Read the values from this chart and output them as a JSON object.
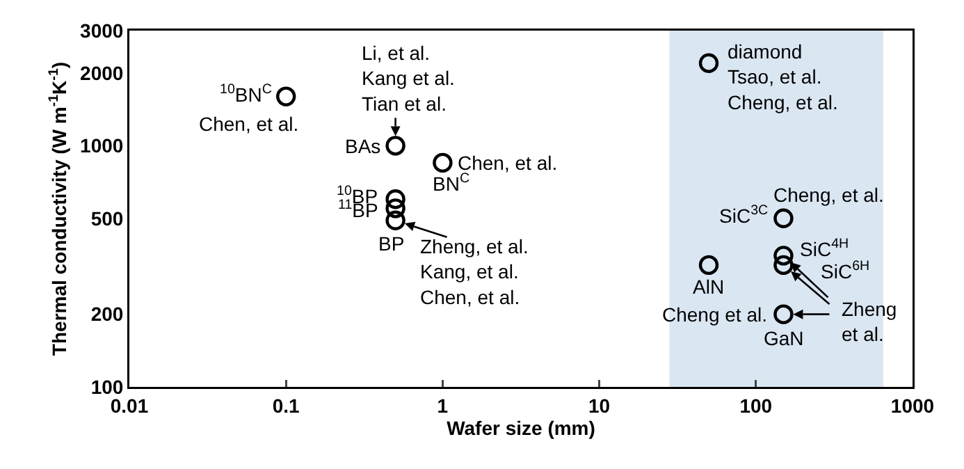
{
  "chart_data": {
    "type": "scatter",
    "xlabel": "Wafer size (mm)",
    "ylabel": "Thermal conductivity (W m$^{-1}$K$^{-1}$)",
    "x": [
      0.1,
      0.5,
      1,
      0.5,
      0.5,
      0.5,
      50,
      150,
      150,
      150,
      50,
      150
    ],
    "values": [
      1600,
      1000,
      850,
      600,
      550,
      490,
      2200,
      500,
      350,
      320,
      320,
      200
    ],
    "color": "#000000",
    "marker": "circle",
    "log": "xy",
    "xlim": [
      0.01,
      1000
    ],
    "xticks": [
      0.01,
      0.1,
      1,
      10,
      100,
      1000
    ],
    "ylim": [
      100,
      3000
    ],
    "yticks": [
      100,
      200,
      500,
      1000,
      2000,
      3000
    ],
    "bands": [
      {
        "axis": "x",
        "from": 28,
        "to": 650,
        "label": null,
        "color": "#dae6f2"
      }
    ],
    "annotations": [
      {
        "text": "$^{10}$BN$^{C}$",
        "x": 0.1,
        "y": 1600
      },
      {
        "text": "Chen, et al.",
        "x": 0.1,
        "y": 1600
      },
      {
        "text": "Li, et al.\nKang et al.\nTian et al.",
        "x": 0.5,
        "y": 1000
      },
      {
        "text": "BAs",
        "x": 0.5,
        "y": 1000
      },
      {
        "text": "Chen, et al.",
        "x": 1,
        "y": 850
      },
      {
        "text": "BN$^{C}$",
        "x": 1,
        "y": 850
      },
      {
        "text": "$^{10}$BP",
        "x": 0.5,
        "y": 600
      },
      {
        "text": "$^{11}$BP",
        "x": 0.5,
        "y": 550
      },
      {
        "text": "BP",
        "x": 0.5,
        "y": 490
      },
      {
        "text": "Zheng, et al.\nKang, et al.\nChen, et al.",
        "x": 0.5,
        "y": 490
      },
      {
        "text": "diamond\nTsao, et al.\nCheng, et al.",
        "x": 50,
        "y": 2200
      },
      {
        "text": "Cheng, et al.",
        "x": 150,
        "y": 500
      },
      {
        "text": "SiC$^{3C}$",
        "x": 150,
        "y": 500
      },
      {
        "text": "SiC$^{4H}$",
        "x": 150,
        "y": 350
      },
      {
        "text": "SiC$^{6H}$",
        "x": 150,
        "y": 320
      },
      {
        "text": "AlN",
        "x": 50,
        "y": 320
      },
      {
        "text": "Cheng et al.",
        "x": 150,
        "y": 200
      },
      {
        "text": "GaN",
        "x": 150,
        "y": 200
      },
      {
        "text": "Zheng\net al.",
        "x": 150,
        "y": 200
      }
    ]
  }
}
